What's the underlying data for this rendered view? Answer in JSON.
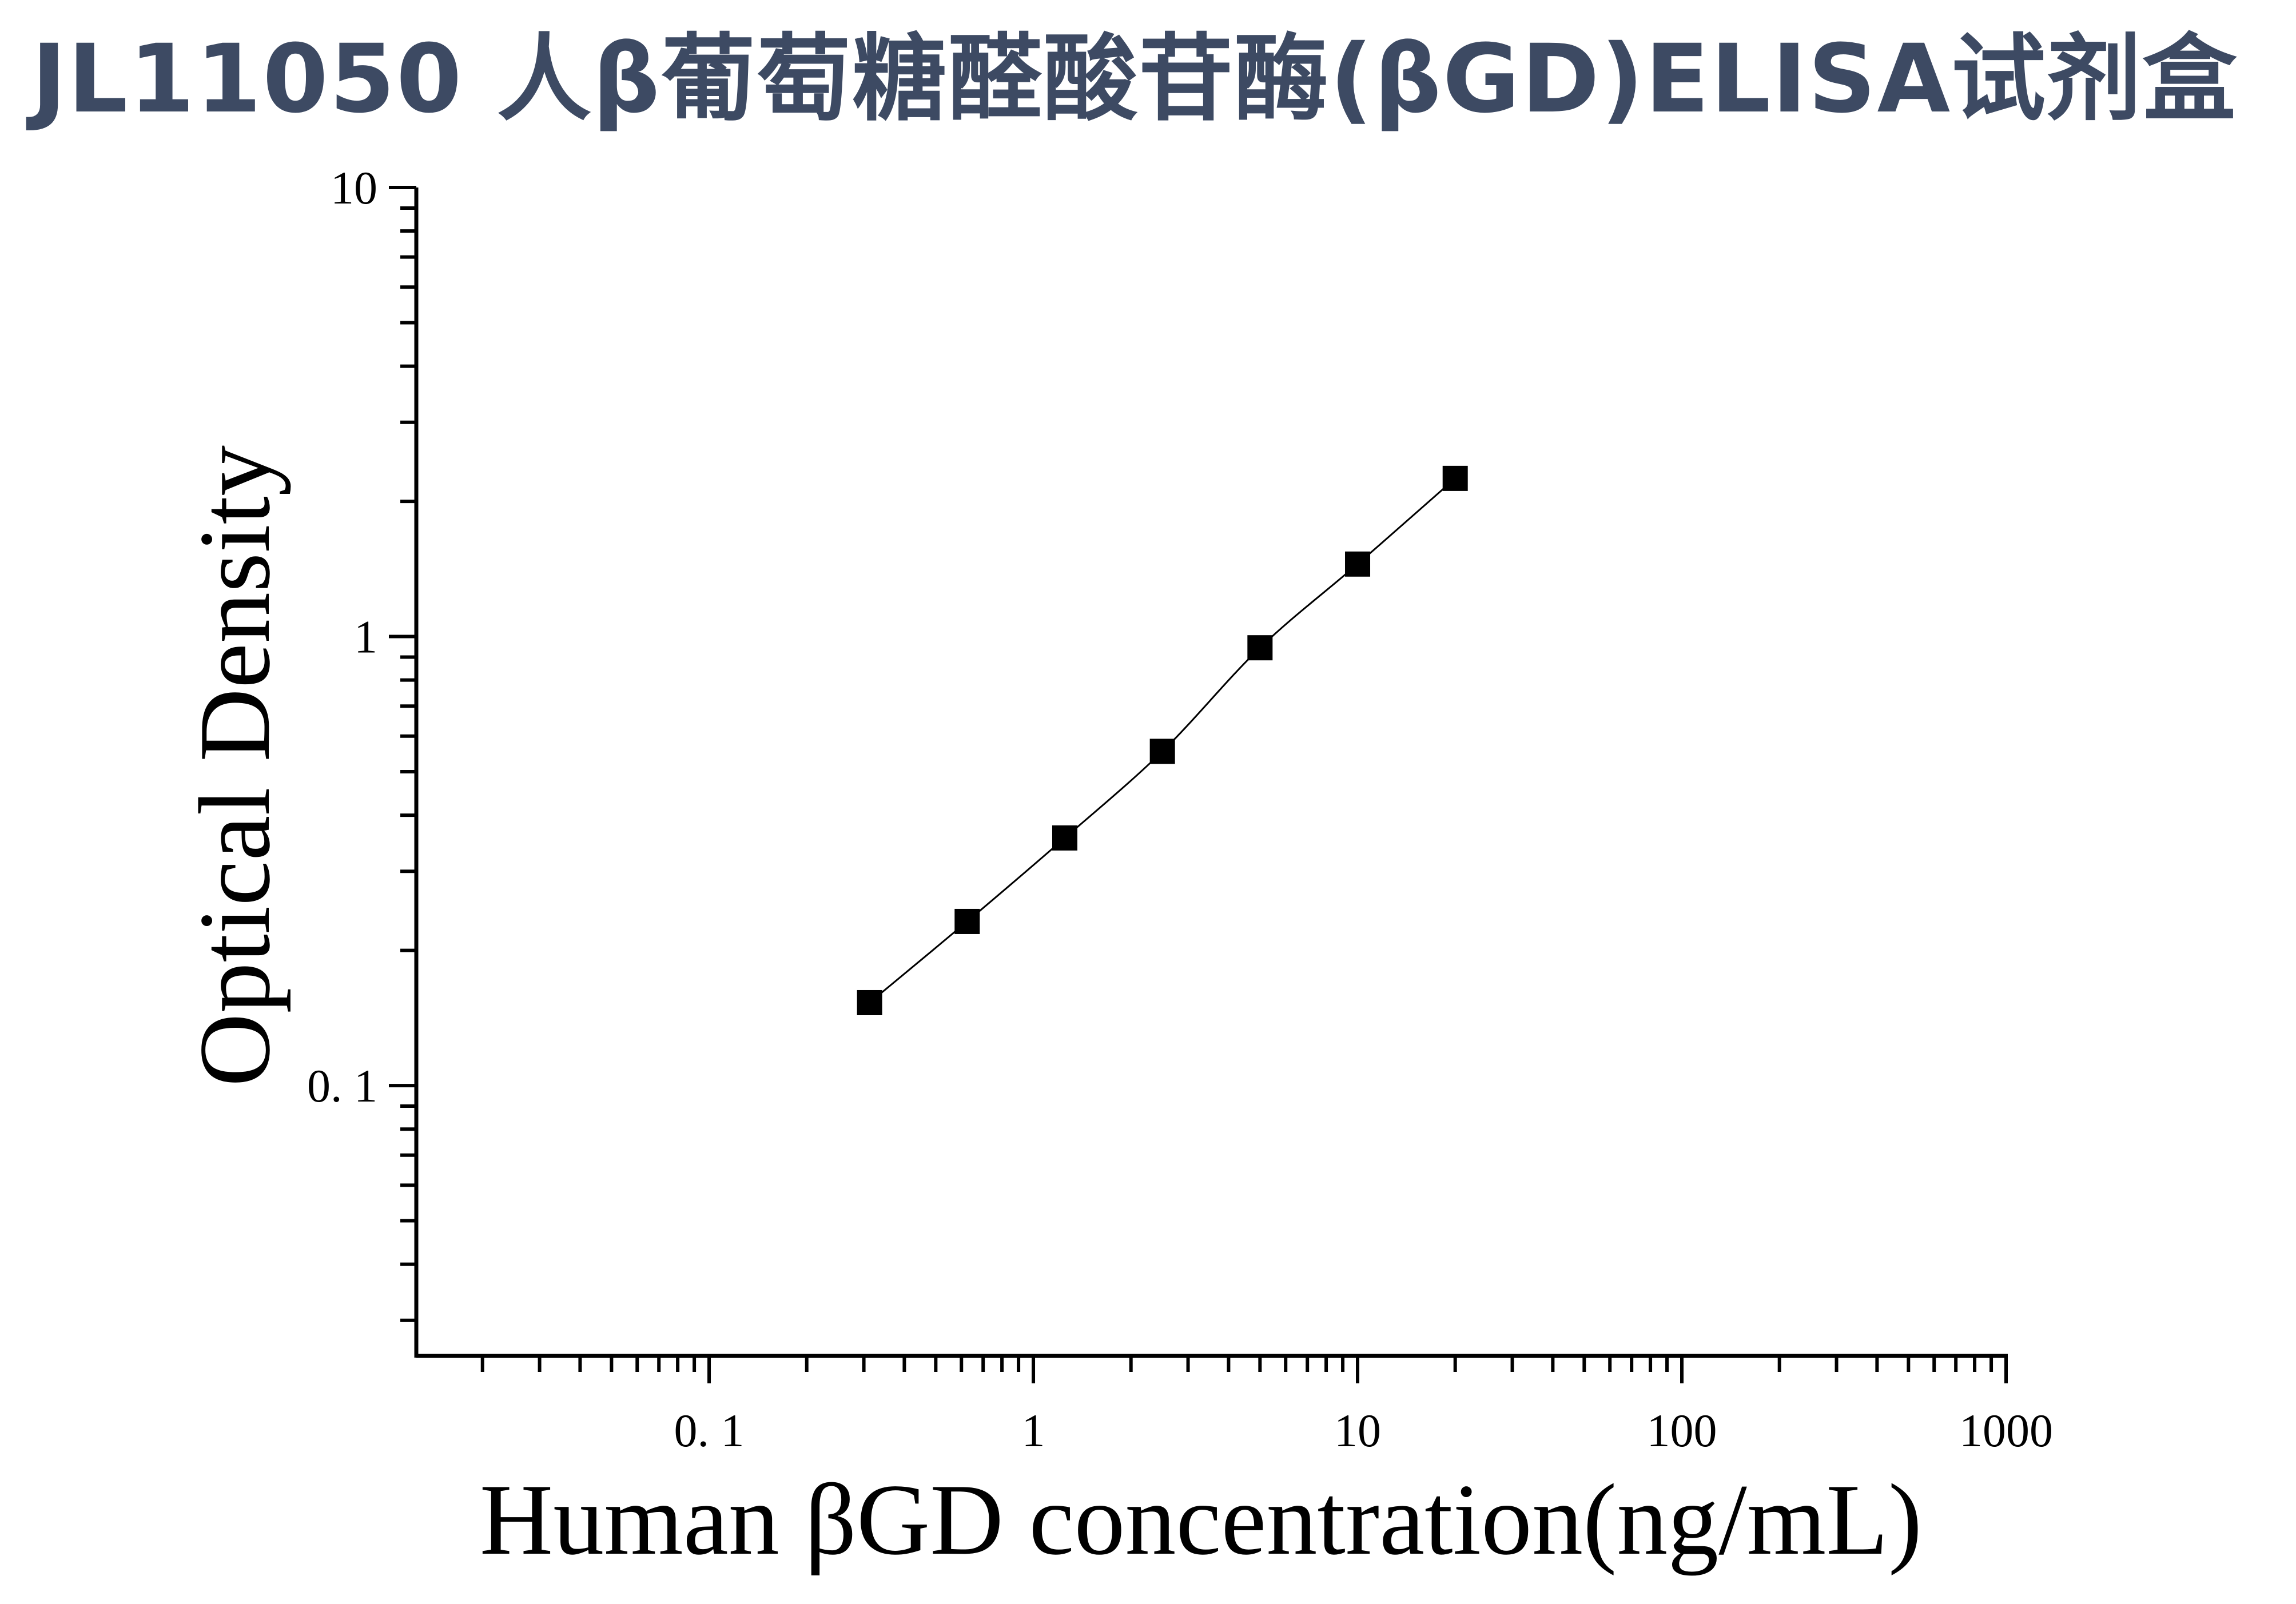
{
  "header": {
    "title": "JL11050 人β葡萄糖醛酸苷酶(βGD)ELISA试剂盒"
  },
  "chart_data": {
    "type": "scatter",
    "title": "JL11050 人β葡萄糖醛酸苷酶(βGD)ELISA试剂盒",
    "xlabel": "Human βGD concentration(ng/mL)",
    "ylabel": "Optical Density",
    "x_scale": "log",
    "y_scale": "log",
    "xlim": [
      0.0125,
      1000
    ],
    "ylim": [
      0.025,
      10
    ],
    "x_ticks": [
      {
        "value": 0.1,
        "label": "0. 1"
      },
      {
        "value": 1,
        "label": "1"
      },
      {
        "value": 10,
        "label": "10"
      },
      {
        "value": 100,
        "label": "100"
      },
      {
        "value": 1000,
        "label": "1000"
      }
    ],
    "y_ticks": [
      {
        "value": 0.1,
        "label": "0. 1"
      },
      {
        "value": 1,
        "label": "1"
      },
      {
        "value": 10,
        "label": "10"
      }
    ],
    "grid": false,
    "legend": "none",
    "marker": "square",
    "series": [
      {
        "x": [
          0.3125,
          0.625,
          1.25,
          2.5,
          5,
          10,
          20
        ],
        "y": [
          0.153,
          0.232,
          0.356,
          0.555,
          0.944,
          1.45,
          2.25
        ],
        "color": "#000000",
        "line": "smooth"
      }
    ],
    "colors": {
      "axis": "#000000",
      "title": "#3d4a63"
    }
  }
}
